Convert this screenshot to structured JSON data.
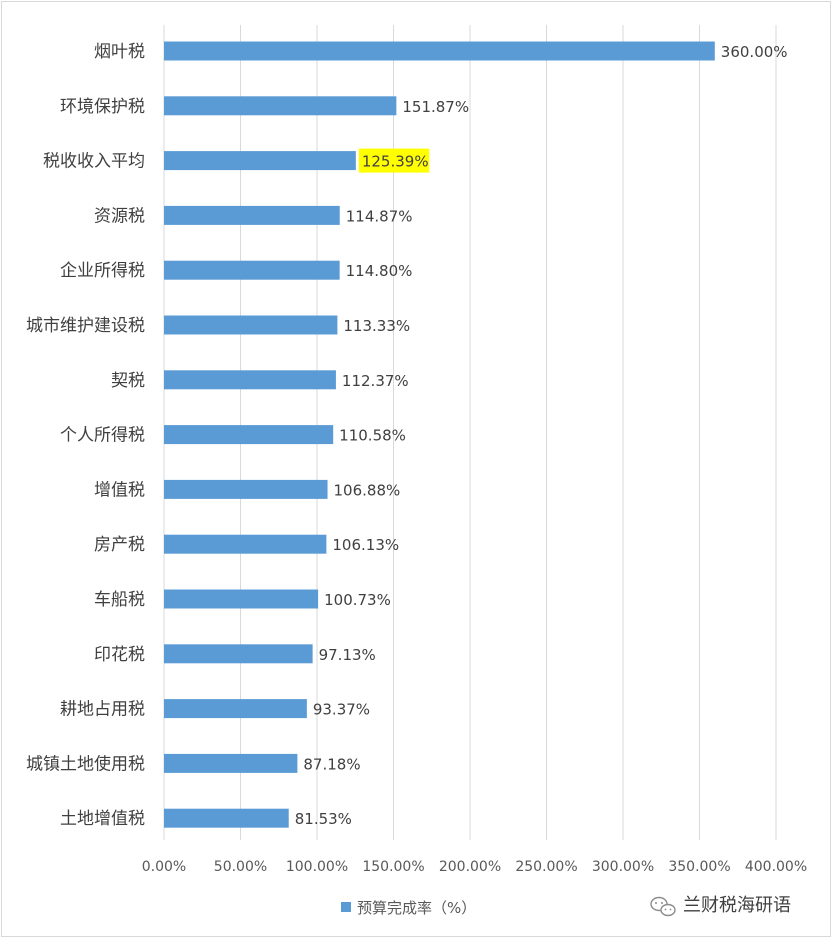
{
  "chart_data": {
    "type": "bar",
    "orientation": "horizontal",
    "categories": [
      "烟叶税",
      "环境保护税",
      "税收收入平均",
      "资源税",
      "企业所得税",
      "城市维护建设税",
      "契税",
      "个人所得税",
      "增值税",
      "房产税",
      "车船税",
      "印花税",
      "耕地占用税",
      "城镇土地使用税",
      "土地增值税"
    ],
    "series": [
      {
        "name": "预算完成率（%）",
        "values": [
          360.0,
          151.87,
          125.39,
          114.87,
          114.8,
          113.33,
          112.37,
          110.58,
          106.88,
          106.13,
          100.73,
          97.13,
          93.37,
          87.18,
          81.53
        ],
        "data_labels": [
          "360.00%",
          "151.87%",
          "125.39%",
          "114.87%",
          "114.80%",
          "113.33%",
          "112.37%",
          "110.58%",
          "106.88%",
          "106.13%",
          "100.73%",
          "97.13%",
          "93.37%",
          "87.18%",
          "81.53%"
        ]
      }
    ],
    "x_ticks": [
      "0.00%",
      "50.00%",
      "100.00%",
      "150.00%",
      "200.00%",
      "250.00%",
      "300.00%",
      "350.00%",
      "400.00%"
    ],
    "xlim": [
      0,
      400
    ],
    "grid": "vertical",
    "legend_position": "bottom",
    "highlight_index": 2,
    "colors": {
      "bar": "#5b9bd5",
      "grid": "#d9d9d9",
      "highlight": "#ffff00"
    }
  },
  "watermark": {
    "text": "兰财税海研语",
    "icon": "wechat-icon"
  }
}
